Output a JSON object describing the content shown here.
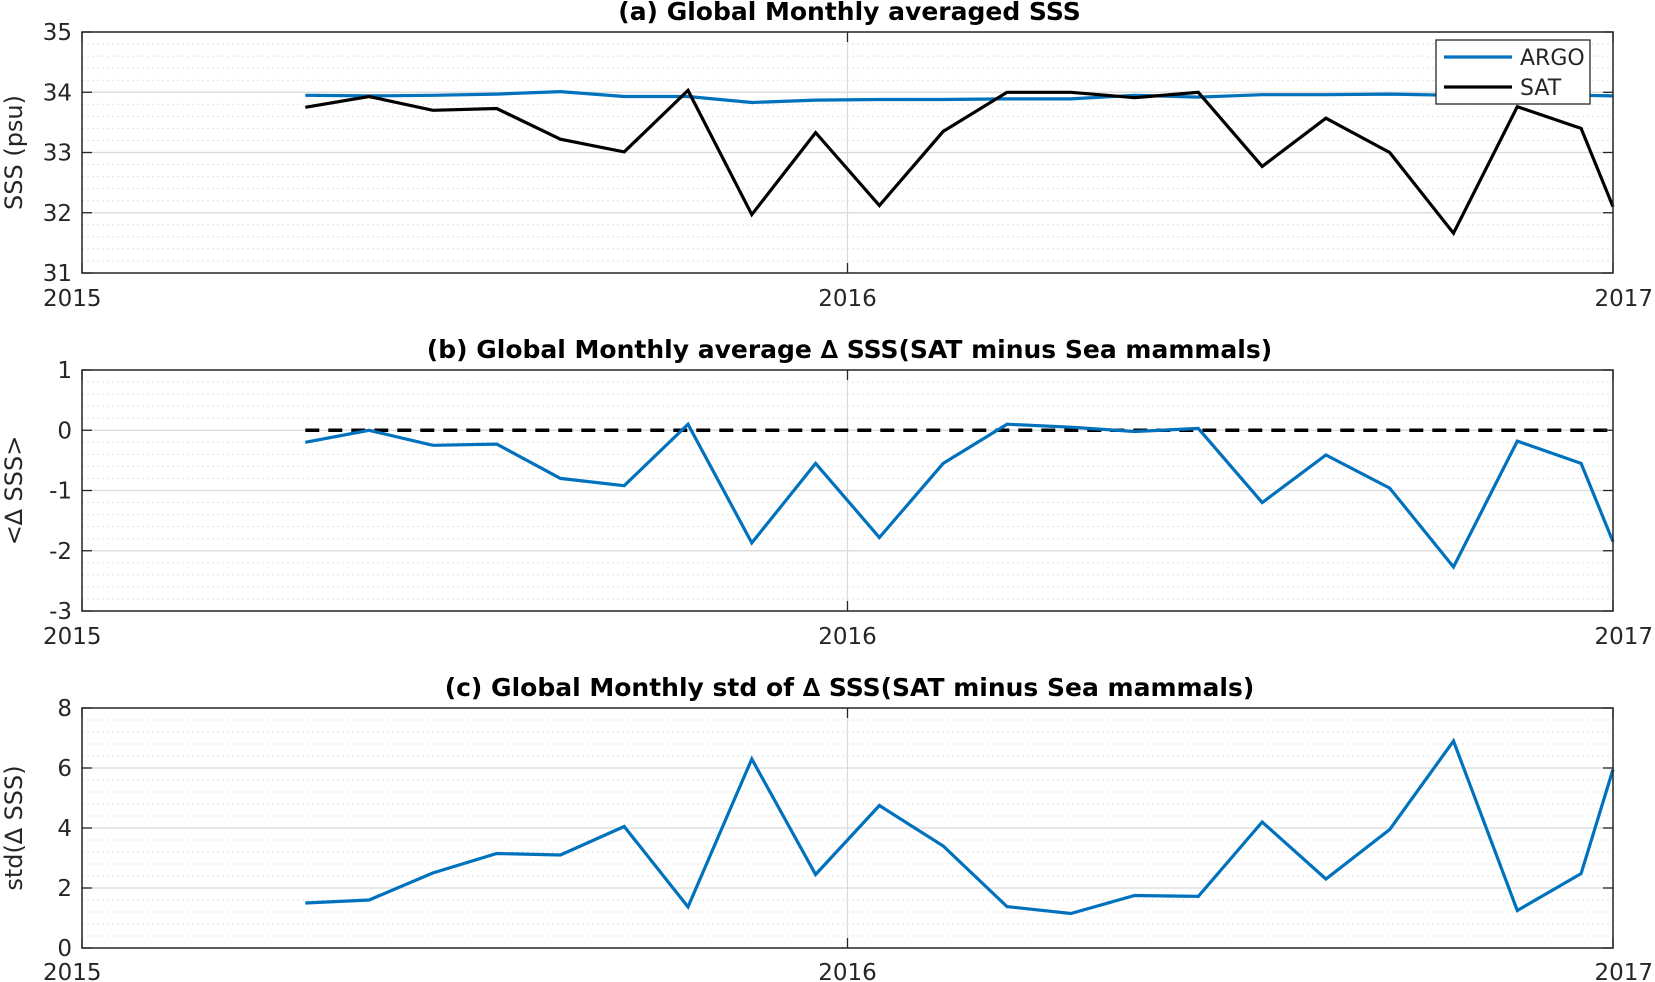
{
  "colors": {
    "blue": "#0072BD",
    "black": "#000000",
    "axis": "#262626",
    "grid": "#d9d9d9"
  },
  "chart_data": [
    {
      "type": "line",
      "title": "(a) Global Monthly averaged SSS",
      "ylabel": "SSS (psu)",
      "xlim": [
        2015,
        2017
      ],
      "ylim": [
        31,
        35
      ],
      "yticks": [
        31,
        32,
        33,
        34,
        35
      ],
      "xticks": [
        2015,
        2016,
        2017
      ],
      "xtick_labels": [
        "2015",
        "2016",
        "2017"
      ],
      "grid": true,
      "legend": "top-right",
      "x": [
        2015.2917,
        2015.375,
        2015.4583,
        2015.5417,
        2015.625,
        2015.7083,
        2015.7917,
        2015.875,
        2015.9583,
        2016.0417,
        2016.125,
        2016.2083,
        2016.2917,
        2016.375,
        2016.4583,
        2016.5417,
        2016.625,
        2016.7083,
        2016.7917,
        2016.875,
        2016.9583,
        2017.0
      ],
      "series": [
        {
          "name": "ARGO",
          "color": "#0072BD",
          "values": [
            33.95,
            33.94,
            33.95,
            33.97,
            34.01,
            33.93,
            33.93,
            33.83,
            33.87,
            33.88,
            33.88,
            33.89,
            33.89,
            33.95,
            33.92,
            33.96,
            33.96,
            33.97,
            33.95,
            33.92,
            33.95,
            33.94
          ]
        },
        {
          "name": "SAT",
          "color": "#000000",
          "values": [
            33.75,
            33.93,
            33.7,
            33.73,
            33.22,
            33.01,
            34.03,
            31.97,
            33.33,
            32.12,
            33.35,
            34.0,
            34.0,
            33.91,
            34.0,
            32.77,
            33.57,
            33.0,
            31.66,
            33.76,
            33.4,
            32.1
          ]
        }
      ]
    },
    {
      "type": "line",
      "title": "(b) Global Monthly average ∆ SSS(SAT minus Sea mammals)",
      "ylabel": "<∆ SSS>",
      "xlim": [
        2015,
        2017
      ],
      "ylim": [
        -3,
        1
      ],
      "yticks": [
        -3,
        -2,
        -1,
        0,
        1
      ],
      "xticks": [
        2015,
        2016,
        2017
      ],
      "xtick_labels": [
        "2015",
        "2016",
        "2017"
      ],
      "grid": true,
      "x": [
        2015.2917,
        2015.375,
        2015.4583,
        2015.5417,
        2015.625,
        2015.7083,
        2015.7917,
        2015.875,
        2015.9583,
        2016.0417,
        2016.125,
        2016.2083,
        2016.2917,
        2016.375,
        2016.4583,
        2016.5417,
        2016.625,
        2016.7083,
        2016.7917,
        2016.875,
        2016.9583,
        2017.0
      ],
      "series": [
        {
          "color": "#0072BD",
          "values": [
            -0.2,
            0.0,
            -0.25,
            -0.23,
            -0.8,
            -0.92,
            0.1,
            -1.87,
            -0.55,
            -1.78,
            -0.55,
            0.1,
            0.05,
            -0.02,
            0.03,
            -1.2,
            -0.41,
            -0.96,
            -2.27,
            -0.18,
            -0.55,
            -1.85
          ]
        }
      ],
      "reference_line": {
        "y": 0,
        "style": "dashed",
        "color": "#000000",
        "x_start": 2015.2917,
        "x_end": 2017.0
      }
    },
    {
      "type": "line",
      "title": "(c) Global Monthly std of ∆ SSS(SAT minus Sea mammals)",
      "ylabel": "std(∆ SSS)",
      "xlim": [
        2015,
        2017
      ],
      "ylim": [
        0,
        8
      ],
      "yticks": [
        0,
        2,
        4,
        6,
        8
      ],
      "xticks": [
        2015,
        2016,
        2017
      ],
      "xtick_labels": [
        "2015",
        "2016",
        "2017"
      ],
      "grid": true,
      "x": [
        2015.2917,
        2015.375,
        2015.4583,
        2015.5417,
        2015.625,
        2015.7083,
        2015.7917,
        2015.875,
        2015.9583,
        2016.0417,
        2016.125,
        2016.2083,
        2016.2917,
        2016.375,
        2016.4583,
        2016.5417,
        2016.625,
        2016.7083,
        2016.7917,
        2016.875,
        2016.9583,
        2017.0
      ],
      "series": [
        {
          "color": "#0072BD",
          "values": [
            1.5,
            1.6,
            2.5,
            3.15,
            3.1,
            4.05,
            1.37,
            6.3,
            2.45,
            4.75,
            3.4,
            1.38,
            1.15,
            1.75,
            1.72,
            4.2,
            2.3,
            3.95,
            6.9,
            1.25,
            2.48,
            5.95
          ]
        }
      ]
    }
  ]
}
